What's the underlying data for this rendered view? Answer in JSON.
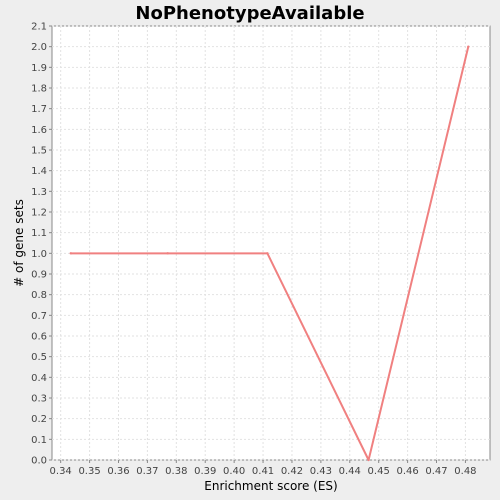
{
  "chart_data": {
    "type": "line",
    "title": "NoPhenotypeAvailable",
    "xlabel": "Enrichment score (ES)",
    "ylabel": "# of gene sets",
    "xlim": [
      0.337,
      0.4885
    ],
    "ylim": [
      0,
      2.1
    ],
    "xticks": [
      "0.34",
      "0.35",
      "0.36",
      "0.37",
      "0.38",
      "0.39",
      "0.40",
      "0.41",
      "0.42",
      "0.43",
      "0.44",
      "0.45",
      "0.46",
      "0.47",
      "0.48"
    ],
    "yticks": [
      "0.0",
      "0.1",
      "0.2",
      "0.3",
      "0.4",
      "0.5",
      "0.6",
      "0.7",
      "0.8",
      "0.9",
      "1.0",
      "1.1",
      "1.2",
      "1.3",
      "1.4",
      "1.5",
      "1.6",
      "1.7",
      "1.8",
      "1.9",
      "2.0",
      "2.1"
    ],
    "grid": true,
    "series": [
      {
        "color": "#f08080",
        "x": [
          0.3435,
          0.377,
          0.4115,
          0.4465,
          0.481
        ],
        "y": [
          1.0,
          1.0,
          1.0,
          0.0,
          2.0
        ]
      }
    ]
  }
}
